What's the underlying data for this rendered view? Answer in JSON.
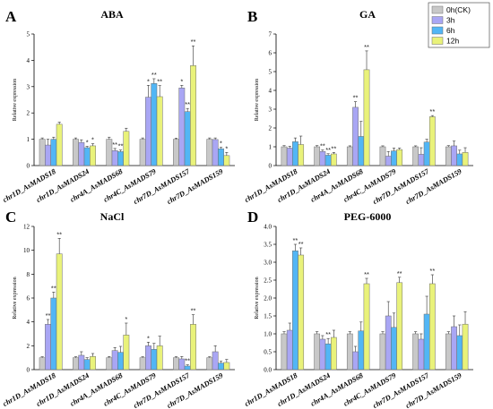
{
  "legend": {
    "entries": [
      "0h(CK)",
      "3h",
      "6h",
      "12h"
    ],
    "colors": [
      "#c8c8c8",
      "#a9a6f4",
      "#52b6f5",
      "#e9f27a"
    ]
  },
  "chart_data": [
    {
      "panel": "A",
      "title": "ABA",
      "type": "bar",
      "ylabel": "Relative expression",
      "ylim": [
        0,
        5
      ],
      "yticks": [
        0,
        1,
        2,
        3,
        4,
        5
      ],
      "categories": [
        "chr1D_AsMADS18",
        "chr1D_AsMADS24",
        "chr4A_AsMADS68",
        "chr4C_AsMADS79",
        "chr7D_AsMADS157",
        "chr7D_AsMADS159"
      ],
      "series": [
        {
          "name": "0h(CK)",
          "values": [
            1.0,
            1.0,
            1.0,
            1.0,
            1.0,
            1.0
          ],
          "errors": [
            0.05,
            0.05,
            0.08,
            0.05,
            0.04,
            0.05
          ]
        },
        {
          "name": "3h",
          "values": [
            0.78,
            0.88,
            0.57,
            2.6,
            2.95,
            0.99
          ],
          "errors": [
            0.22,
            0.1,
            0.08,
            0.45,
            0.1,
            0.06
          ]
        },
        {
          "name": "6h",
          "values": [
            1.0,
            0.68,
            0.53,
            3.12,
            2.05,
            0.64
          ],
          "errors": [
            0.08,
            0.05,
            0.06,
            0.18,
            0.12,
            0.05
          ]
        },
        {
          "name": "12h",
          "values": [
            1.57,
            0.75,
            1.3,
            2.62,
            3.8,
            0.38
          ],
          "errors": [
            0.08,
            0.08,
            0.12,
            0.42,
            0.75,
            0.12
          ]
        }
      ],
      "stars": [
        {
          "cat": 1,
          "series": 2,
          "label": "*"
        },
        {
          "cat": 1,
          "series": 3,
          "label": "*"
        },
        {
          "cat": 2,
          "series": 1,
          "label": "**"
        },
        {
          "cat": 2,
          "series": 2,
          "label": "**"
        },
        {
          "cat": 3,
          "series": 1,
          "label": "*"
        },
        {
          "cat": 3,
          "series": 2,
          "label": "**"
        },
        {
          "cat": 3,
          "series": 3,
          "label": "**"
        },
        {
          "cat": 4,
          "series": 1,
          "label": "*"
        },
        {
          "cat": 4,
          "series": 2,
          "label": "**"
        },
        {
          "cat": 4,
          "series": 3,
          "label": "**"
        },
        {
          "cat": 5,
          "series": 2,
          "label": "*"
        },
        {
          "cat": 5,
          "series": 3,
          "label": "*"
        }
      ]
    },
    {
      "panel": "B",
      "title": "GA",
      "type": "bar",
      "ylabel": "Relative expression",
      "ylim": [
        0,
        7
      ],
      "yticks": [
        0,
        1,
        2,
        3,
        4,
        5,
        6,
        7
      ],
      "categories": [
        "chr1D_AsMADS18",
        "chr1D_AsMADS24",
        "chr4A_AsMADS68",
        "chr4C_AsMADS79",
        "chr7D_AsMADS157",
        "chr7D_AsMADS159"
      ],
      "series": [
        {
          "name": "0h(CK)",
          "values": [
            1.0,
            1.0,
            1.0,
            1.0,
            1.0,
            1.0
          ],
          "errors": [
            0.06,
            0.06,
            0.05,
            0.05,
            0.05,
            0.06
          ]
        },
        {
          "name": "3h",
          "values": [
            0.93,
            0.75,
            3.1,
            0.5,
            0.6,
            1.05
          ],
          "errors": [
            0.1,
            0.08,
            0.3,
            0.25,
            0.35,
            0.25
          ]
        },
        {
          "name": "6h",
          "values": [
            1.27,
            0.55,
            1.55,
            0.78,
            1.25,
            0.62
          ],
          "errors": [
            0.2,
            0.08,
            0.8,
            0.15,
            0.15,
            0.2
          ]
        },
        {
          "name": "12h",
          "values": [
            1.12,
            0.62,
            5.1,
            0.85,
            2.6,
            0.7
          ],
          "errors": [
            0.45,
            0.08,
            1.0,
            0.08,
            0.06,
            0.25
          ]
        }
      ],
      "stars": [
        {
          "cat": 1,
          "series": 1,
          "label": "**"
        },
        {
          "cat": 1,
          "series": 2,
          "label": "**"
        },
        {
          "cat": 1,
          "series": 3,
          "label": "**"
        },
        {
          "cat": 2,
          "series": 1,
          "label": "**"
        },
        {
          "cat": 2,
          "series": 3,
          "label": "**"
        },
        {
          "cat": 4,
          "series": 3,
          "label": "**"
        }
      ]
    },
    {
      "panel": "C",
      "title": "NaCl",
      "type": "bar",
      "ylabel": "Relative expression",
      "ylim": [
        0,
        12
      ],
      "yticks": [
        0,
        2,
        4,
        6,
        8,
        10,
        12
      ],
      "categories": [
        "chr1D_AsMADS18",
        "chr1D_AsMADS24",
        "chr4A_AsMADS68",
        "chr4C_AsMADS79",
        "chr7D_AsMADS157",
        "chr7D_AsMADS159"
      ],
      "series": [
        {
          "name": "0h(CK)",
          "values": [
            1.0,
            1.0,
            1.0,
            1.0,
            1.0,
            1.0
          ],
          "errors": [
            0.08,
            0.08,
            0.1,
            0.08,
            0.08,
            0.08
          ]
        },
        {
          "name": "3h",
          "values": [
            3.8,
            1.2,
            1.6,
            2.0,
            0.9,
            1.5
          ],
          "errors": [
            0.4,
            0.3,
            0.25,
            0.3,
            0.2,
            0.5
          ]
        },
        {
          "name": "6h",
          "values": [
            6.0,
            0.85,
            1.45,
            1.7,
            0.3,
            0.55
          ],
          "errors": [
            0.5,
            0.15,
            0.5,
            0.5,
            0.1,
            0.15
          ]
        },
        {
          "name": "12h",
          "values": [
            9.7,
            1.1,
            2.9,
            2.0,
            3.8,
            0.6
          ],
          "errors": [
            1.3,
            0.25,
            1.0,
            0.8,
            0.8,
            0.25
          ]
        }
      ],
      "stars": [
        {
          "cat": 0,
          "series": 1,
          "label": "**"
        },
        {
          "cat": 0,
          "series": 2,
          "label": "**"
        },
        {
          "cat": 0,
          "series": 3,
          "label": "**"
        },
        {
          "cat": 2,
          "series": 3,
          "label": "*"
        },
        {
          "cat": 3,
          "series": 1,
          "label": "*"
        },
        {
          "cat": 4,
          "series": 2,
          "label": "**"
        },
        {
          "cat": 4,
          "series": 3,
          "label": "**"
        }
      ]
    },
    {
      "panel": "D",
      "title": "PEG-6000",
      "type": "bar",
      "ylabel": "Relative expression",
      "ylim": [
        0,
        4.0
      ],
      "yticks": [
        0.0,
        0.5,
        1.0,
        1.5,
        2.0,
        2.5,
        3.0,
        3.5,
        4.0
      ],
      "tick_decimals": 1,
      "categories": [
        "chr1D_AsMADS18",
        "chr1D_AsMADS24",
        "chr4A_AsMADS68",
        "chr4C_AsMADS79",
        "chr7D_AsMADS157",
        "chr7D_AsMADS159"
      ],
      "series": [
        {
          "name": "0h(CK)",
          "values": [
            1.0,
            1.0,
            1.0,
            1.0,
            1.0,
            1.0
          ],
          "errors": [
            0.06,
            0.06,
            0.06,
            0.06,
            0.06,
            0.06
          ]
        },
        {
          "name": "3h",
          "values": [
            1.1,
            0.85,
            0.5,
            1.5,
            0.85,
            1.2
          ],
          "errors": [
            0.2,
            0.1,
            0.15,
            0.4,
            0.15,
            0.3
          ]
        },
        {
          "name": "6h",
          "values": [
            3.32,
            0.72,
            1.08,
            1.18,
            1.55,
            0.95
          ],
          "errors": [
            0.18,
            0.15,
            0.25,
            0.4,
            0.5,
            0.3
          ]
        },
        {
          "name": "12h",
          "values": [
            3.2,
            0.9,
            2.4,
            2.43,
            2.4,
            1.27
          ],
          "errors": [
            0.2,
            0.2,
            0.15,
            0.15,
            0.25,
            0.35
          ]
        }
      ],
      "stars": [
        {
          "cat": 0,
          "series": 2,
          "label": "**"
        },
        {
          "cat": 0,
          "series": 3,
          "label": "**"
        },
        {
          "cat": 1,
          "series": 2,
          "label": "**"
        },
        {
          "cat": 2,
          "series": 3,
          "label": "**"
        },
        {
          "cat": 3,
          "series": 3,
          "label": "**"
        },
        {
          "cat": 4,
          "series": 3,
          "label": "**"
        }
      ]
    }
  ]
}
